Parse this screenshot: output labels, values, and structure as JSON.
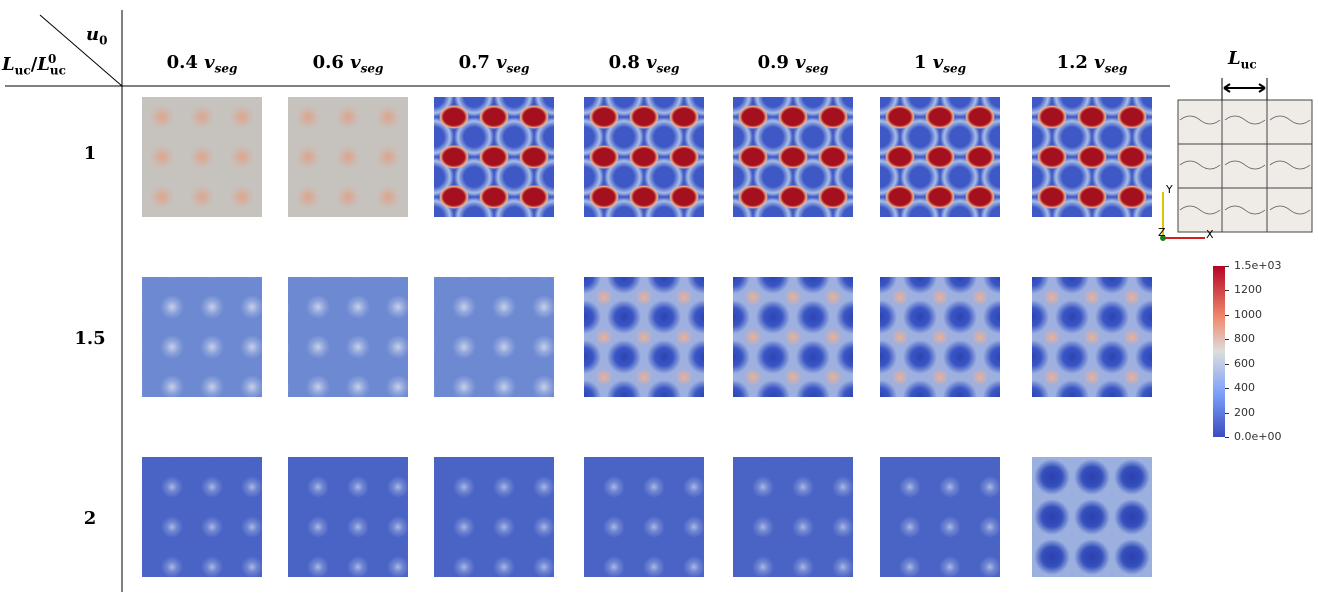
{
  "table": {
    "corner": {
      "column_variable": {
        "symbol": "u",
        "subscript": "0"
      },
      "row_variable": {
        "numerator": {
          "symbol": "L",
          "subscript": "uc"
        },
        "separator": "/",
        "denominator": {
          "symbol": "L",
          "subscript": "uc",
          "superscript": "0"
        }
      }
    },
    "columns": [
      {
        "coefficient": "0.4",
        "symbol": "v",
        "subscript": "seg"
      },
      {
        "coefficient": "0.6",
        "symbol": "v",
        "subscript": "seg"
      },
      {
        "coefficient": "0.7",
        "symbol": "v",
        "subscript": "seg"
      },
      {
        "coefficient": "0.8",
        "symbol": "v",
        "subscript": "seg"
      },
      {
        "coefficient": "0.9",
        "symbol": "v",
        "subscript": "seg"
      },
      {
        "coefficient": "1",
        "symbol": "v",
        "subscript": "seg"
      },
      {
        "coefficient": "1.2",
        "symbol": "v",
        "subscript": "seg"
      }
    ],
    "rows": [
      "1",
      "1.5",
      "2"
    ]
  },
  "inset": {
    "label": {
      "symbol": "L",
      "subscript": "uc"
    },
    "axes": [
      "Y",
      "Z",
      "X"
    ]
  },
  "colorbar": {
    "labels": [
      "1.5e+03",
      "1200",
      "1000",
      "800",
      "600",
      "400",
      "200",
      "0.0e+00"
    ]
  }
}
